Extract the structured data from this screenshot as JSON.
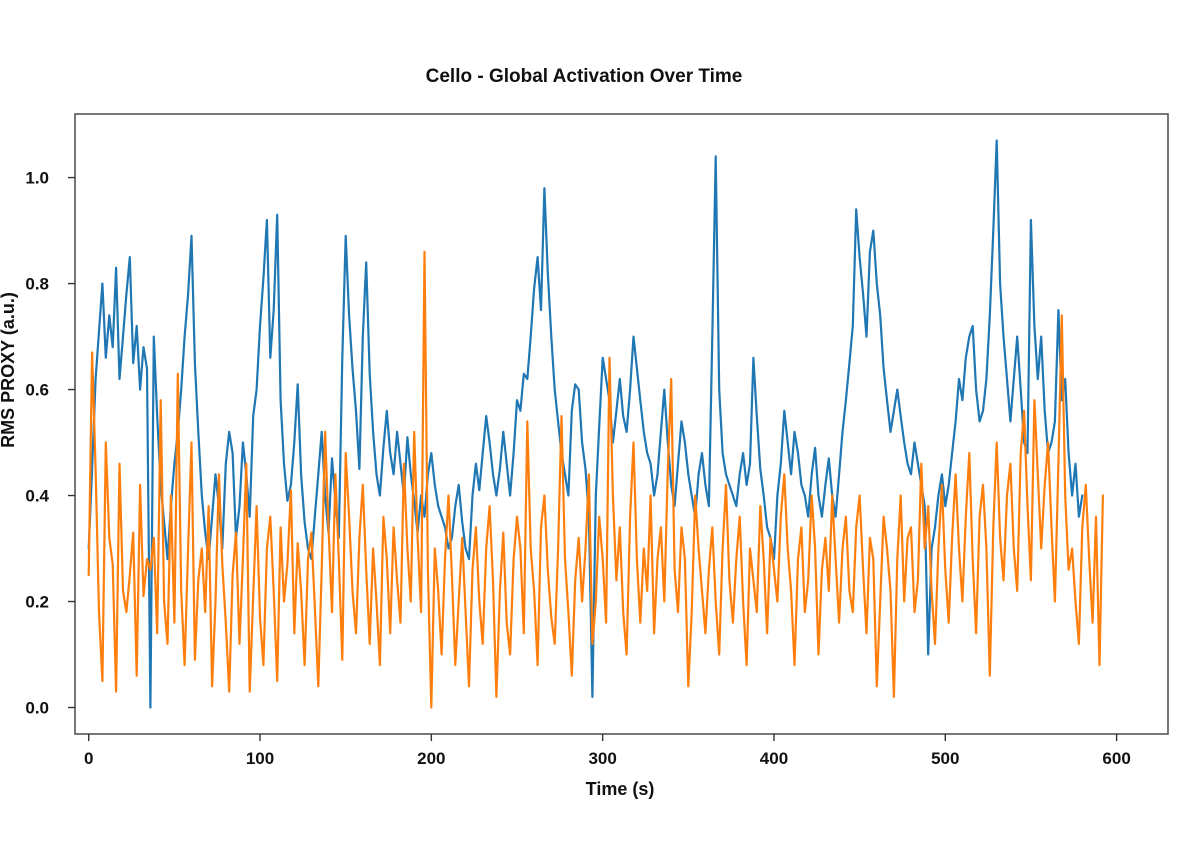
{
  "chart_data": {
    "type": "line",
    "title": "Cello - Global Activation Over Time",
    "xlabel": "Time (s)",
    "ylabel": "RMS PROXY (a.u.)",
    "xlim": [
      -8,
      630
    ],
    "ylim": [
      -0.05,
      1.12
    ],
    "xticks": [
      0,
      100,
      200,
      300,
      400,
      500,
      600
    ],
    "xtick_labels": [
      "0",
      "100",
      "200",
      "300",
      "400",
      "500",
      "600"
    ],
    "yticks": [
      0.0,
      0.2,
      0.4,
      0.6,
      0.8,
      1.0
    ],
    "ytick_labels": [
      "0.0",
      "0.2",
      "0.4",
      "0.6",
      "0.8",
      "1.0"
    ],
    "grid": false,
    "legend": "none",
    "sample_step": 2,
    "series": [
      {
        "color": "#1f77b4",
        "x_start": 0,
        "y": [
          0.3,
          0.45,
          0.62,
          0.71,
          0.8,
          0.66,
          0.74,
          0.68,
          0.83,
          0.62,
          0.7,
          0.78,
          0.85,
          0.65,
          0.72,
          0.6,
          0.68,
          0.64,
          0.0,
          0.7,
          0.55,
          0.42,
          0.35,
          0.28,
          0.38,
          0.46,
          0.52,
          0.6,
          0.7,
          0.78,
          0.89,
          0.65,
          0.52,
          0.4,
          0.33,
          0.28,
          0.36,
          0.44,
          0.38,
          0.3,
          0.46,
          0.52,
          0.48,
          0.32,
          0.38,
          0.5,
          0.44,
          0.36,
          0.55,
          0.6,
          0.72,
          0.81,
          0.92,
          0.66,
          0.75,
          0.93,
          0.58,
          0.46,
          0.39,
          0.42,
          0.5,
          0.61,
          0.44,
          0.35,
          0.3,
          0.28,
          0.36,
          0.44,
          0.52,
          0.4,
          0.33,
          0.47,
          0.39,
          0.32,
          0.66,
          0.89,
          0.74,
          0.64,
          0.56,
          0.45,
          0.7,
          0.84,
          0.63,
          0.52,
          0.44,
          0.4,
          0.49,
          0.56,
          0.48,
          0.44,
          0.52,
          0.46,
          0.4,
          0.51,
          0.44,
          0.39,
          0.33,
          0.4,
          0.36,
          0.44,
          0.48,
          0.42,
          0.38,
          0.36,
          0.34,
          0.3,
          0.32,
          0.38,
          0.42,
          0.35,
          0.3,
          0.28,
          0.4,
          0.46,
          0.41,
          0.48,
          0.55,
          0.5,
          0.44,
          0.4,
          0.45,
          0.52,
          0.46,
          0.4,
          0.48,
          0.58,
          0.56,
          0.63,
          0.62,
          0.7,
          0.79,
          0.85,
          0.75,
          0.98,
          0.82,
          0.7,
          0.6,
          0.54,
          0.48,
          0.44,
          0.4,
          0.56,
          0.61,
          0.6,
          0.5,
          0.45,
          0.36,
          0.02,
          0.4,
          0.53,
          0.66,
          0.62,
          0.58,
          0.5,
          0.56,
          0.62,
          0.55,
          0.52,
          0.6,
          0.7,
          0.64,
          0.58,
          0.52,
          0.48,
          0.46,
          0.4,
          0.44,
          0.52,
          0.6,
          0.5,
          0.42,
          0.38,
          0.46,
          0.54,
          0.5,
          0.44,
          0.4,
          0.36,
          0.44,
          0.48,
          0.42,
          0.38,
          0.7,
          1.04,
          0.6,
          0.48,
          0.44,
          0.42,
          0.4,
          0.38,
          0.44,
          0.48,
          0.42,
          0.46,
          0.66,
          0.55,
          0.45,
          0.4,
          0.34,
          0.32,
          0.28,
          0.4,
          0.46,
          0.56,
          0.5,
          0.44,
          0.52,
          0.48,
          0.42,
          0.4,
          0.36,
          0.44,
          0.49,
          0.4,
          0.36,
          0.42,
          0.47,
          0.4,
          0.36,
          0.44,
          0.52,
          0.58,
          0.65,
          0.72,
          0.94,
          0.85,
          0.78,
          0.7,
          0.86,
          0.9,
          0.8,
          0.74,
          0.64,
          0.58,
          0.52,
          0.56,
          0.6,
          0.55,
          0.5,
          0.46,
          0.44,
          0.5,
          0.46,
          0.42,
          0.38,
          0.1,
          0.3,
          0.34,
          0.4,
          0.44,
          0.38,
          0.42,
          0.48,
          0.54,
          0.62,
          0.58,
          0.66,
          0.7,
          0.72,
          0.6,
          0.54,
          0.56,
          0.62,
          0.74,
          0.9,
          1.07,
          0.8,
          0.7,
          0.62,
          0.54,
          0.62,
          0.7,
          0.6,
          0.5,
          0.48,
          0.92,
          0.72,
          0.62,
          0.7,
          0.56,
          0.48,
          0.5,
          0.54,
          0.75,
          0.58,
          0.62,
          0.48,
          0.4,
          0.46,
          0.36,
          0.4
        ]
      },
      {
        "color": "#ff7f0e",
        "x_start": 0,
        "y": [
          0.25,
          0.67,
          0.45,
          0.18,
          0.05,
          0.5,
          0.32,
          0.27,
          0.03,
          0.46,
          0.22,
          0.18,
          0.25,
          0.33,
          0.06,
          0.42,
          0.21,
          0.28,
          0.26,
          0.32,
          0.14,
          0.58,
          0.2,
          0.12,
          0.4,
          0.16,
          0.63,
          0.22,
          0.08,
          0.3,
          0.5,
          0.09,
          0.24,
          0.3,
          0.18,
          0.38,
          0.04,
          0.2,
          0.44,
          0.27,
          0.16,
          0.03,
          0.25,
          0.33,
          0.12,
          0.28,
          0.46,
          0.03,
          0.21,
          0.38,
          0.17,
          0.08,
          0.3,
          0.36,
          0.22,
          0.05,
          0.34,
          0.2,
          0.27,
          0.41,
          0.14,
          0.31,
          0.22,
          0.08,
          0.28,
          0.33,
          0.19,
          0.04,
          0.26,
          0.52,
          0.34,
          0.18,
          0.44,
          0.28,
          0.09,
          0.48,
          0.36,
          0.22,
          0.14,
          0.32,
          0.42,
          0.26,
          0.12,
          0.3,
          0.2,
          0.08,
          0.36,
          0.28,
          0.14,
          0.34,
          0.24,
          0.16,
          0.46,
          0.3,
          0.2,
          0.52,
          0.32,
          0.18,
          0.86,
          0.26,
          0.0,
          0.3,
          0.22,
          0.1,
          0.28,
          0.4,
          0.25,
          0.08,
          0.2,
          0.32,
          0.18,
          0.04,
          0.26,
          0.34,
          0.2,
          0.12,
          0.3,
          0.38,
          0.24,
          0.02,
          0.22,
          0.33,
          0.16,
          0.1,
          0.28,
          0.36,
          0.3,
          0.14,
          0.54,
          0.3,
          0.22,
          0.08,
          0.34,
          0.4,
          0.26,
          0.17,
          0.12,
          0.3,
          0.55,
          0.28,
          0.18,
          0.06,
          0.24,
          0.32,
          0.2,
          0.3,
          0.44,
          0.12,
          0.2,
          0.36,
          0.28,
          0.16,
          0.66,
          0.4,
          0.24,
          0.34,
          0.18,
          0.1,
          0.36,
          0.5,
          0.28,
          0.16,
          0.3,
          0.22,
          0.4,
          0.14,
          0.28,
          0.34,
          0.2,
          0.45,
          0.62,
          0.26,
          0.18,
          0.34,
          0.28,
          0.04,
          0.18,
          0.4,
          0.3,
          0.22,
          0.14,
          0.26,
          0.34,
          0.2,
          0.1,
          0.3,
          0.42,
          0.24,
          0.16,
          0.28,
          0.36,
          0.2,
          0.08,
          0.3,
          0.24,
          0.18,
          0.38,
          0.28,
          0.14,
          0.32,
          0.26,
          0.2,
          0.36,
          0.44,
          0.3,
          0.22,
          0.08,
          0.28,
          0.34,
          0.18,
          0.24,
          0.4,
          0.3,
          0.1,
          0.26,
          0.32,
          0.22,
          0.4,
          0.28,
          0.16,
          0.3,
          0.36,
          0.22,
          0.18,
          0.34,
          0.4,
          0.26,
          0.14,
          0.32,
          0.28,
          0.04,
          0.2,
          0.36,
          0.3,
          0.22,
          0.02,
          0.28,
          0.4,
          0.2,
          0.32,
          0.34,
          0.18,
          0.24,
          0.46,
          0.3,
          0.38,
          0.22,
          0.12,
          0.3,
          0.42,
          0.26,
          0.16,
          0.32,
          0.44,
          0.3,
          0.2,
          0.36,
          0.48,
          0.28,
          0.14,
          0.36,
          0.42,
          0.3,
          0.06,
          0.34,
          0.5,
          0.32,
          0.24,
          0.4,
          0.46,
          0.3,
          0.22,
          0.48,
          0.56,
          0.38,
          0.24,
          0.58,
          0.44,
          0.3,
          0.42,
          0.5,
          0.34,
          0.2,
          0.46,
          0.74,
          0.4,
          0.26,
          0.3,
          0.2,
          0.12,
          0.34,
          0.42,
          0.28,
          0.16,
          0.36,
          0.08,
          0.4
        ]
      }
    ]
  }
}
